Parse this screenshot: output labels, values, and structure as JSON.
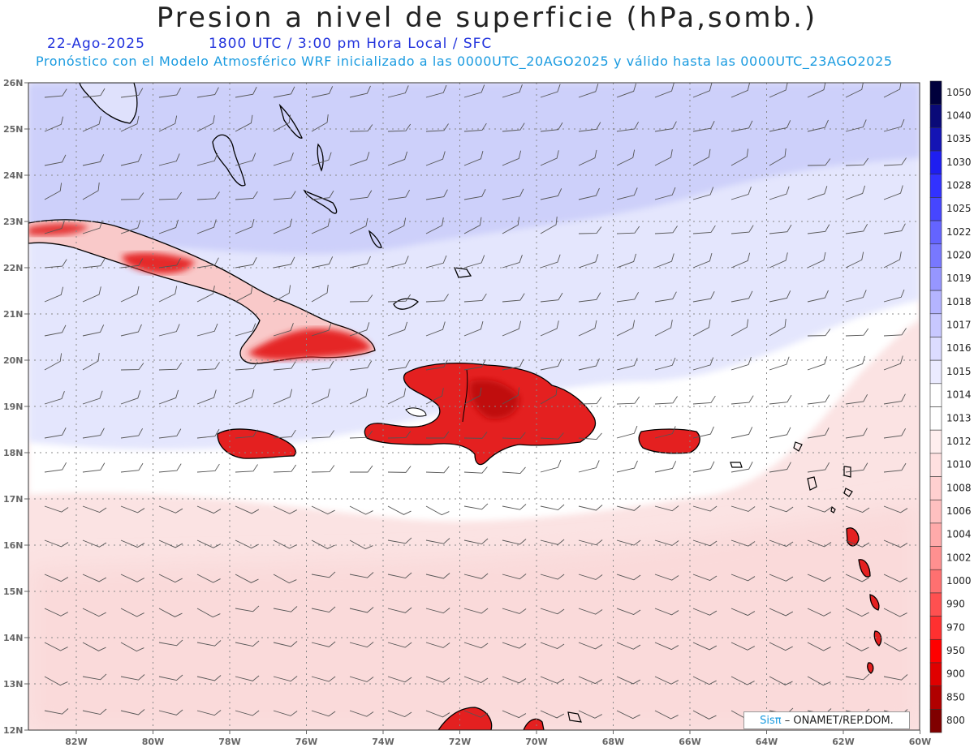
{
  "header": {
    "title": "Presion a nivel de superficie (hPa,somb.)",
    "date": "22-Ago-2025",
    "time": "1800 UTC / 3:00 pm Hora Local / SFC",
    "description": "Pronóstico con el Modelo Atmosférico WRF inicializado a las 0000UTC_20AGO2025 y válido hasta las  0000UTC_23AGO2025"
  },
  "axes": {
    "lat_labels": [
      "26N",
      "25N",
      "24N",
      "23N",
      "22N",
      "21N",
      "20N",
      "19N",
      "18N",
      "17N",
      "16N",
      "15N",
      "14N",
      "13N",
      "12N"
    ],
    "lon_labels": [
      "82W",
      "80W",
      "78W",
      "76W",
      "74W",
      "72W",
      "70W",
      "68W",
      "66W",
      "64W",
      "62W",
      "60W"
    ]
  },
  "colorbar": {
    "levels": [
      "1050",
      "1040",
      "1035",
      "1030",
      "1028",
      "1025",
      "1022",
      "1020",
      "1019",
      "1018",
      "1017",
      "1016",
      "1015",
      "1014",
      "1013",
      "1012",
      "1010",
      "1008",
      "1006",
      "1004",
      "1002",
      "1000",
      "990",
      "970",
      "950",
      "900",
      "850",
      "800"
    ],
    "colors": [
      "#00003c",
      "#0a0a78",
      "#1414b4",
      "#1e1ef0",
      "#3232ff",
      "#4646ff",
      "#6464ff",
      "#7878ff",
      "#9696ff",
      "#b4b4ff",
      "#c8c8ff",
      "#dcdcff",
      "#ebebff",
      "#ffffff",
      "#ffffff",
      "#ffeeee",
      "#ffe0e0",
      "#ffd0d0",
      "#ffc0c0",
      "#ffaaaa",
      "#ff9090",
      "#ff7070",
      "#ff5050",
      "#ff3030",
      "#ff0000",
      "#e00000",
      "#b00000",
      "#800000"
    ]
  },
  "colors": {
    "field_high": "#cdd0fa",
    "field_mid": "#e4e6fd",
    "field_low": "#fbe3e3",
    "land_low": "#e42020"
  },
  "logo": {
    "sis": "Sisπ",
    "org": "– ONAMET/REP.DOM."
  }
}
